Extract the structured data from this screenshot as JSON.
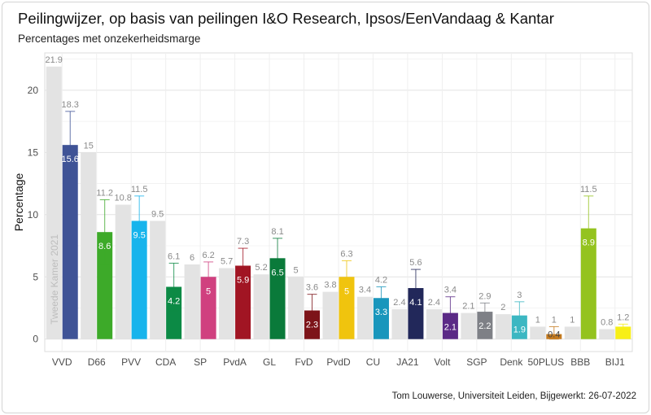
{
  "title": "Peilingwijzer, op basis van peilingen I&O Research, Ipsos/EenVandaag & Kantar",
  "subtitle": "Percentages met onzekerheidsmarge",
  "caption": "Tom Louwerse, Universiteit Leiden, Bijgewerkt: 26-07-2022",
  "chart_data": {
    "type": "bar",
    "title": "Peilingwijzer, op basis van peilingen I&O Research, Ipsos/EenVandaag & Kantar",
    "subtitle": "Percentages met onzekerheidsmarge",
    "ylabel": "Percentage",
    "xlabel": "",
    "ylim": [
      -1,
      23
    ],
    "yticks": [
      0,
      5,
      10,
      15,
      20
    ],
    "grid": true,
    "annotation": "Tweede Kamer 2021",
    "categories": [
      "VVD",
      "D66",
      "PVV",
      "CDA",
      "SP",
      "PvdA",
      "GL",
      "FvD",
      "PvdD",
      "CU",
      "JA21",
      "Volt",
      "SGP",
      "Denk",
      "50PLUS",
      "BBB",
      "BIJ1"
    ],
    "series": [
      {
        "name": "Tweede Kamer 2021",
        "color": "#e3e3e3",
        "values": [
          21.9,
          15,
          10.8,
          9.5,
          6,
          5.7,
          5.2,
          5,
          3.8,
          3.4,
          2.4,
          2.4,
          2.1,
          2,
          1,
          1,
          0.8
        ],
        "labels": [
          "21.9",
          "15",
          "10.8",
          "9.5",
          "6",
          "5.7",
          "5.2",
          "5",
          "3.8",
          "3.4",
          "2.4",
          "2.4",
          "2.1",
          "2",
          "1",
          "1",
          "0.8"
        ]
      },
      {
        "name": "",
        "values": [
          15.6,
          8.6,
          9.5,
          4.2,
          5,
          5.9,
          6.5,
          2.3,
          5,
          3.3,
          4.1,
          2.1,
          2.2,
          1.9,
          0.4,
          8.9,
          1
        ],
        "labels": [
          "15.6",
          "8.6",
          "9.5",
          "4.2",
          "5",
          "5.9",
          "6.5",
          "2.3",
          "5",
          "3.3",
          "4.1",
          "2.1",
          "2.2",
          "1.9",
          "0.4",
          "8.9",
          ""
        ],
        "upper": [
          18.3,
          11.2,
          11.5,
          6.1,
          6.2,
          7.3,
          8.1,
          3.6,
          6.3,
          4.2,
          5.6,
          3.4,
          2.9,
          3,
          1,
          11.5,
          1.2
        ],
        "upper_labels": [
          "18.3",
          "11.2",
          "11.5",
          "6.1",
          "6.2",
          "7.3",
          "8.1",
          "3.6",
          "6.3",
          "4.2",
          "5.6",
          "3.4",
          "2.9",
          "3",
          "1",
          "11.5",
          "1.2"
        ],
        "colors": [
          "#3f5396",
          "#3daa29",
          "#17b4ec",
          "#0c8a45",
          "#d0407f",
          "#a11523",
          "#0a7a3a",
          "#7d1419",
          "#f0c40e",
          "#1996bc",
          "#22285a",
          "#5b2a86",
          "#7e8086",
          "#3cb7c2",
          "#c57a1e",
          "#94c31f",
          "#f7ef16"
        ]
      }
    ]
  }
}
